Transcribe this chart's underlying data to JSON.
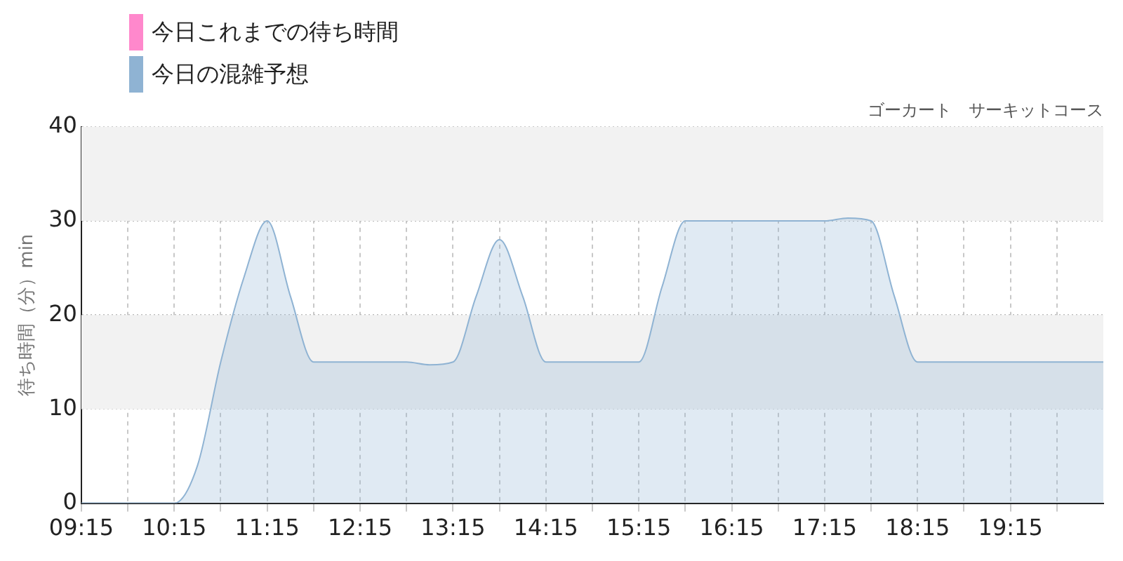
{
  "chart_data": {
    "type": "area",
    "title": "ゴーカート　サーキットコース",
    "ylabel": "待ち時間（分）min",
    "x": [
      9.25,
      9.75,
      10.0,
      10.25,
      10.5,
      10.75,
      11.0,
      11.25,
      11.5,
      11.75,
      12.0,
      12.25,
      12.75,
      13.0,
      13.25,
      13.5,
      13.75,
      14.0,
      14.25,
      14.5,
      15.0,
      15.25,
      15.5,
      15.75,
      16.0,
      16.25,
      17.25,
      17.5,
      17.75,
      18.0,
      18.25,
      18.5,
      19.25,
      20.25
    ],
    "series": [
      {
        "name": "今日これまでの待ち時間",
        "color": "#ff88cc",
        "values": [
          null,
          null,
          null,
          null,
          null,
          null,
          null,
          null,
          null,
          null,
          null,
          null,
          null,
          null,
          null,
          null,
          null,
          null,
          null,
          null,
          null,
          null,
          null,
          null,
          null,
          null,
          null,
          null,
          null,
          null,
          null,
          null,
          null,
          null
        ]
      },
      {
        "name": "今日の混雑予想",
        "color": "#8fb3d3",
        "values": [
          0,
          0,
          0,
          0,
          4,
          15,
          24,
          30,
          22,
          15,
          15,
          15,
          15,
          14.7,
          15,
          22,
          28,
          22,
          15,
          15,
          15,
          15,
          23,
          30,
          30,
          30,
          30,
          30.3,
          30,
          22,
          15,
          15,
          15,
          15
        ]
      }
    ],
    "xlim": [
      9.25,
      20.25
    ],
    "xticks": [
      {
        "value": 9.25,
        "label": "09:15"
      },
      {
        "value": 9.75,
        "label": null
      },
      {
        "value": 10.25,
        "label": "10:15"
      },
      {
        "value": 10.75,
        "label": null
      },
      {
        "value": 11.25,
        "label": "11:15"
      },
      {
        "value": 11.75,
        "label": null
      },
      {
        "value": 12.25,
        "label": "12:15"
      },
      {
        "value": 12.75,
        "label": null
      },
      {
        "value": 13.25,
        "label": "13:15"
      },
      {
        "value": 13.75,
        "label": null
      },
      {
        "value": 14.25,
        "label": "14:15"
      },
      {
        "value": 14.75,
        "label": null
      },
      {
        "value": 15.25,
        "label": "15:15"
      },
      {
        "value": 15.75,
        "label": null
      },
      {
        "value": 16.25,
        "label": "16:15"
      },
      {
        "value": 16.75,
        "label": null
      },
      {
        "value": 17.25,
        "label": "17:15"
      },
      {
        "value": 17.75,
        "label": null
      },
      {
        "value": 18.25,
        "label": "18:15"
      },
      {
        "value": 18.75,
        "label": null
      },
      {
        "value": 19.25,
        "label": "19:15"
      },
      {
        "value": 19.75,
        "label": null
      }
    ],
    "ylim": [
      0,
      40
    ],
    "yticks": [
      0,
      10,
      20,
      30,
      40
    ],
    "bands": [
      {
        "axis": "y",
        "from": 10,
        "to": 20,
        "color": "#f2f2f2"
      },
      {
        "axis": "y",
        "from": 30,
        "to": 40,
        "color": "#f2f2f2"
      }
    ],
    "grid": true,
    "legend": "top left"
  }
}
